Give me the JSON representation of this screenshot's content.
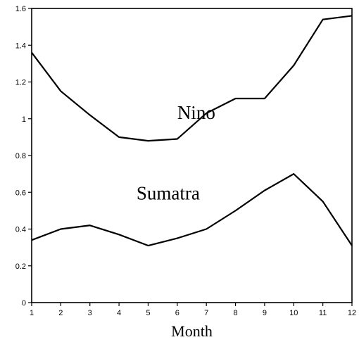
{
  "chart_data": {
    "type": "line",
    "xlabel": "Month",
    "ylabel": "",
    "x": [
      1,
      2,
      3,
      4,
      5,
      6,
      7,
      8,
      9,
      10,
      11,
      12
    ],
    "xlim": [
      1,
      12
    ],
    "ylim": [
      0,
      1.6
    ],
    "x_ticks": [
      "1",
      "2",
      "3",
      "4",
      "5",
      "6",
      "7",
      "8",
      "9",
      "10",
      "11",
      "12"
    ],
    "y_ticks": [
      "0",
      "0.2",
      "0.4",
      "0.6",
      "0.8",
      "1",
      "1.2",
      "1.4",
      "1.6"
    ],
    "grid": false,
    "legend": "none",
    "series": [
      {
        "name": "Nino",
        "values": [
          1.36,
          1.15,
          1.02,
          0.9,
          0.88,
          0.89,
          1.03,
          1.11,
          1.11,
          1.29,
          1.54,
          1.56
        ]
      },
      {
        "name": "Sumatra",
        "values": [
          0.34,
          0.4,
          0.42,
          0.37,
          0.31,
          0.35,
          0.4,
          0.5,
          0.61,
          0.7,
          0.55,
          0.31
        ]
      }
    ]
  }
}
